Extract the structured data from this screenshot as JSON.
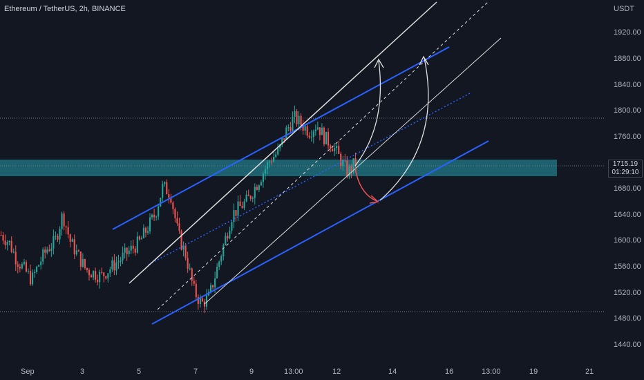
{
  "header": {
    "symbol_title": "Ethereum / TetherUS, 2h, BINANCE"
  },
  "price_axis": {
    "currency": "USDT",
    "ticks": [
      "1920.00",
      "1880.00",
      "1840.00",
      "1800.00",
      "1760.00",
      "1680.00",
      "1640.00",
      "1600.00",
      "1560.00",
      "1520.00",
      "1480.00",
      "1440.00"
    ]
  },
  "time_axis": {
    "ticks": [
      "Sep",
      "3",
      "5",
      "7",
      "9",
      "13:00",
      "12",
      "14",
      "16",
      "13:00",
      "19",
      "21"
    ]
  },
  "last_price": {
    "value": "1715.19",
    "countdown": "01:29:10"
  },
  "colors": {
    "up": "#26a69a",
    "down": "#ef5350",
    "channel": "#2962ff",
    "zone": "#1f6f7a"
  },
  "chart_data": {
    "type": "candlestick",
    "y_unit": "USDT",
    "ylim": [
      1425,
      1950
    ],
    "support_resistance_zone": [
      1705,
      1730
    ],
    "horizontal_levels": [
      1790,
      1493
    ],
    "close_series_approx": [
      1610,
      1600,
      1575,
      1560,
      1545,
      1570,
      1590,
      1600,
      1640,
      1600,
      1580,
      1560,
      1555,
      1550,
      1560,
      1570,
      1580,
      1590,
      1600,
      1620,
      1640,
      1680,
      1670,
      1610,
      1580,
      1530,
      1510,
      1520,
      1560,
      1600,
      1640,
      1650,
      1660,
      1680,
      1700,
      1720,
      1730,
      1760,
      1780,
      1770,
      1760,
      1770,
      1750,
      1740,
      1720,
      1700,
      1715
    ]
  }
}
